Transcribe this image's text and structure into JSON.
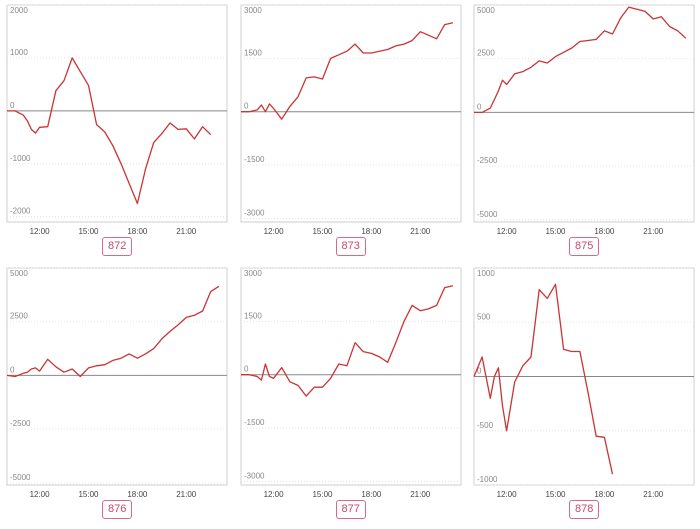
{
  "accent_color": "#cc3333",
  "badge_color": "#d9688a",
  "x_ticks": [
    "12:00",
    "15:00",
    "18:00",
    "21:00"
  ],
  "chart_data": [
    {
      "type": "line",
      "label": "872",
      "ylim": [
        -2100,
        2000
      ],
      "yticks": [
        -2000,
        -1000,
        0,
        1000,
        2000
      ],
      "x": [
        "10:00",
        "10:30",
        "11:00",
        "11:15",
        "11:30",
        "11:45",
        "12:00",
        "12:30",
        "13:00",
        "13:30",
        "14:00",
        "15:00",
        "15:30",
        "16:00",
        "16:30",
        "17:00",
        "18:00",
        "18:30",
        "19:00",
        "19:30",
        "20:00",
        "20:30",
        "21:00",
        "21:30",
        "22:00",
        "22:30"
      ],
      "values": [
        0,
        0,
        -80,
        -190,
        -350,
        -420,
        -310,
        -300,
        380,
        570,
        1000,
        480,
        -260,
        -400,
        -660,
        -1000,
        -1750,
        -1100,
        -600,
        -430,
        -230,
        -350,
        -340,
        -530,
        -300,
        -450
      ]
    },
    {
      "type": "line",
      "label": "873",
      "ylim": [
        -3100,
        3000
      ],
      "yticks": [
        -3000,
        -1500,
        0,
        1500,
        3000
      ],
      "x": [
        "10:00",
        "10:30",
        "11:00",
        "11:15",
        "11:30",
        "11:45",
        "12:00",
        "12:30",
        "13:00",
        "13:30",
        "14:00",
        "14:30",
        "15:00",
        "15:30",
        "16:00",
        "16:30",
        "17:00",
        "17:30",
        "18:00",
        "18:30",
        "19:00",
        "19:30",
        "20:00",
        "20:30",
        "21:00",
        "21:30",
        "22:00",
        "22:30",
        "23:00"
      ],
      "values": [
        0,
        0,
        50,
        190,
        0,
        220,
        90,
        -210,
        150,
        420,
        950,
        980,
        920,
        1500,
        1600,
        1700,
        1900,
        1650,
        1650,
        1700,
        1750,
        1850,
        1900,
        2000,
        2250,
        2150,
        2050,
        2450,
        2500
      ]
    },
    {
      "type": "line",
      "label": "875",
      "ylim": [
        -5100,
        5000
      ],
      "yticks": [
        -5000,
        -2500,
        0,
        2500,
        5000
      ],
      "x": [
        "10:00",
        "10:30",
        "11:00",
        "11:15",
        "11:30",
        "11:45",
        "12:00",
        "12:30",
        "13:00",
        "13:30",
        "14:00",
        "14:30",
        "15:00",
        "15:30",
        "16:00",
        "16:30",
        "17:00",
        "17:30",
        "18:00",
        "18:30",
        "19:00",
        "19:30",
        "20:00",
        "20:30",
        "21:00",
        "21:30",
        "22:00",
        "22:30",
        "23:00"
      ],
      "values": [
        0,
        0,
        200,
        600,
        1000,
        1500,
        1300,
        1800,
        1900,
        2100,
        2400,
        2300,
        2600,
        2800,
        3000,
        3300,
        3350,
        3400,
        3800,
        3650,
        4400,
        4900,
        4800,
        4700,
        4350,
        4450,
        4000,
        3800,
        3450
      ]
    },
    {
      "type": "line",
      "label": "876",
      "ylim": [
        -5100,
        5000
      ],
      "yticks": [
        -5000,
        -2500,
        0,
        2500,
        5000
      ],
      "x": [
        "10:00",
        "10:30",
        "11:00",
        "11:15",
        "11:30",
        "11:45",
        "12:00",
        "12:30",
        "13:00",
        "13:30",
        "14:00",
        "14:30",
        "15:00",
        "15:30",
        "16:00",
        "16:30",
        "17:00",
        "17:30",
        "18:00",
        "18:30",
        "19:00",
        "19:30",
        "20:00",
        "20:30",
        "21:00",
        "21:30",
        "22:00",
        "22:30",
        "23:00"
      ],
      "values": [
        0,
        -50,
        100,
        150,
        300,
        350,
        200,
        750,
        400,
        150,
        300,
        -50,
        350,
        450,
        500,
        700,
        800,
        1000,
        800,
        1000,
        1250,
        1700,
        2050,
        2350,
        2700,
        2800,
        3000,
        3900,
        4150
      ]
    },
    {
      "type": "line",
      "label": "877",
      "ylim": [
        -3100,
        3000
      ],
      "yticks": [
        -3000,
        -1500,
        0,
        1500,
        3000
      ],
      "x": [
        "10:00",
        "10:30",
        "11:00",
        "11:15",
        "11:30",
        "11:45",
        "12:00",
        "12:30",
        "13:00",
        "13:30",
        "14:00",
        "14:30",
        "15:00",
        "15:30",
        "16:00",
        "16:30",
        "17:00",
        "17:30",
        "18:00",
        "18:30",
        "19:00",
        "19:30",
        "20:00",
        "20:30",
        "21:00",
        "21:30",
        "22:00",
        "22:30",
        "23:00"
      ],
      "values": [
        0,
        0,
        -50,
        -150,
        300,
        -50,
        -100,
        200,
        -200,
        -300,
        -600,
        -350,
        -350,
        -100,
        300,
        250,
        900,
        650,
        600,
        500,
        350,
        900,
        1500,
        1950,
        1800,
        1850,
        1950,
        2450,
        2500
      ]
    },
    {
      "type": "line",
      "label": "878",
      "ylim": [
        -1000,
        1000
      ],
      "yticks": [
        -1000,
        -500,
        0,
        500,
        1000
      ],
      "x": [
        "10:00",
        "10:30",
        "11:00",
        "11:15",
        "11:30",
        "11:45",
        "12:00",
        "12:30",
        "13:00",
        "13:30",
        "14:00",
        "14:30",
        "15:00",
        "15:30",
        "16:00",
        "16:30",
        "17:00",
        "17:30",
        "18:00",
        "18:30",
        "19:00",
        "19:30",
        "20:00"
      ],
      "values": [
        0,
        180,
        -200,
        0,
        80,
        -270,
        -500,
        -50,
        100,
        180,
        800,
        720,
        850,
        250,
        230,
        230,
        -150,
        -550,
        -560,
        -900,
        null,
        null,
        null
      ]
    }
  ]
}
